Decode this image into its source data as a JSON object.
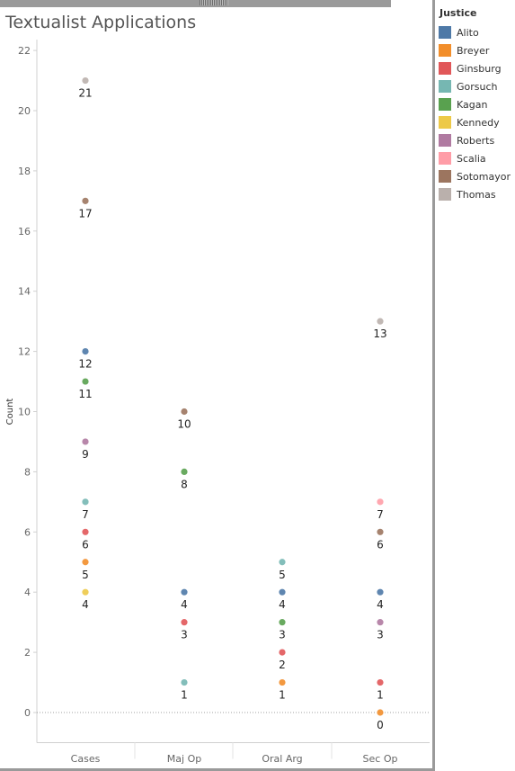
{
  "chart_data": {
    "type": "scatter",
    "title": "Textualist Applications",
    "ylabel": "Count",
    "xlabel": "",
    "categories": [
      "Cases",
      "Maj Op",
      "Oral Arg",
      "Sec Op"
    ],
    "ylim": [
      -1,
      22
    ],
    "y_ticks": [
      0,
      2,
      4,
      6,
      8,
      10,
      12,
      14,
      16,
      18,
      20,
      22
    ],
    "legend_title": "Justice",
    "legend_position": "right",
    "series": [
      {
        "name": "Alito",
        "color": "#4e79a7",
        "values": [
          12,
          4,
          4,
          4
        ]
      },
      {
        "name": "Breyer",
        "color": "#f28e2b",
        "values": [
          5,
          null,
          1,
          0
        ]
      },
      {
        "name": "Ginsburg",
        "color": "#e15759",
        "values": [
          6,
          3,
          2,
          1
        ]
      },
      {
        "name": "Gorsuch",
        "color": "#76b7b2",
        "values": [
          7,
          1,
          5,
          null
        ]
      },
      {
        "name": "Kagan",
        "color": "#59a14f",
        "values": [
          11,
          8,
          3,
          null
        ]
      },
      {
        "name": "Kennedy",
        "color": "#edc948",
        "values": [
          4,
          null,
          null,
          null
        ]
      },
      {
        "name": "Roberts",
        "color": "#b07aa1",
        "values": [
          9,
          null,
          null,
          3
        ]
      },
      {
        "name": "Scalia",
        "color": "#ff9da7",
        "values": [
          null,
          null,
          null,
          7
        ]
      },
      {
        "name": "Sotomayor",
        "color": "#9c755f",
        "values": [
          17,
          10,
          null,
          6
        ]
      },
      {
        "name": "Thomas",
        "color": "#bab0ac",
        "values": [
          21,
          null,
          null,
          13
        ]
      }
    ],
    "grid": false,
    "zero_line": true
  }
}
